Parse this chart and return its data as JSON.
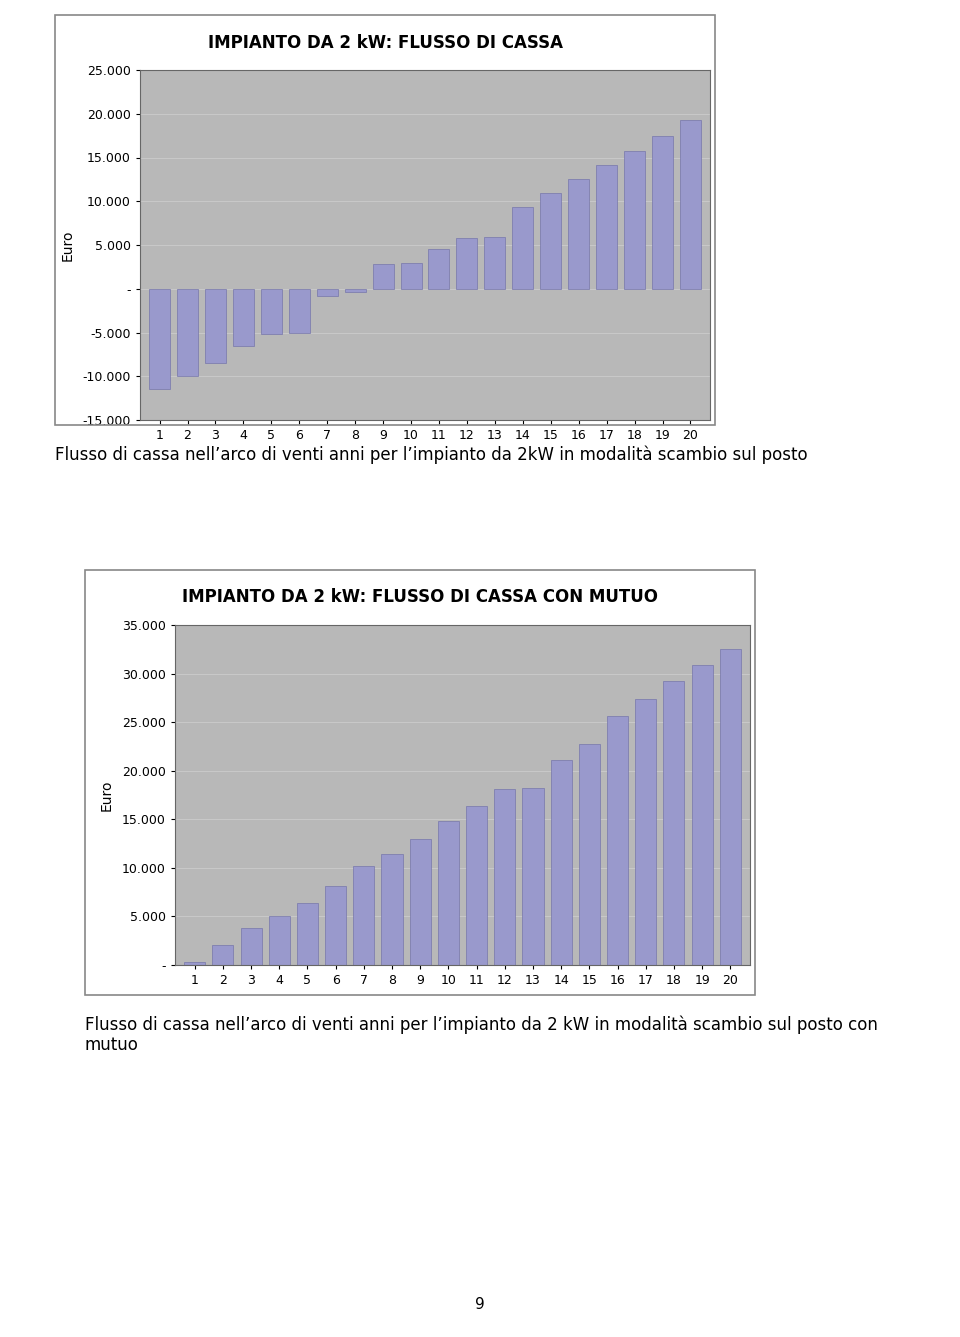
{
  "chart1": {
    "title": "IMPIANTO DA 2 kW: FLUSSO DI CASSA",
    "ylabel": "Euro",
    "values": [
      -11500,
      -10000,
      -8500,
      -6500,
      -5200,
      -5000,
      -850,
      -350,
      2800,
      3000,
      4500,
      5800,
      5900,
      9400,
      10900,
      12500,
      14200,
      15700,
      17500,
      19300
    ],
    "ylim": [
      -15000,
      25000
    ],
    "yticks": [
      -15000,
      -10000,
      -5000,
      0,
      5000,
      10000,
      15000,
      20000,
      25000
    ],
    "ytick_labels": [
      "-15.000",
      "-10.000",
      "-5.000",
      "-",
      "5.000",
      "10.000",
      "15.000",
      "20.000",
      "25.000"
    ]
  },
  "chart2": {
    "title": "IMPIANTO DA 2 kW: FLUSSO DI CASSA CON MUTUO",
    "ylabel": "Euro",
    "values": [
      300,
      2100,
      3800,
      5000,
      6400,
      8100,
      10200,
      11400,
      13000,
      14800,
      16400,
      18100,
      18200,
      21100,
      22700,
      25600,
      27400,
      29200,
      30900,
      32500
    ],
    "ylim": [
      0,
      35000
    ],
    "yticks": [
      0,
      5000,
      10000,
      15000,
      20000,
      25000,
      30000,
      35000
    ],
    "ytick_labels": [
      "-",
      "5.000",
      "10.000",
      "15.000",
      "20.000",
      "25.000",
      "30.000",
      "35.000"
    ]
  },
  "caption1": "Flusso di cassa nell’arco di venti anni per l’impianto da 2kW in modalità scambio sul posto",
  "caption2": "Flusso di cassa nell’arco di venti anni per l’impianto da 2 kW in modalità scambio sul posto con\nmutuo",
  "page_number": "9",
  "bar_color": "#9999cc",
  "bar_edgecolor": "#7777aa",
  "plot_bg_color": "#b8b8b8",
  "frame_bg_color": "#ffffff",
  "outer_bg": "#ffffff",
  "grid_color": "#c8c8c8",
  "categories": [
    1,
    2,
    3,
    4,
    5,
    6,
    7,
    8,
    9,
    10,
    11,
    12,
    13,
    14,
    15,
    16,
    17,
    18,
    19,
    20
  ],
  "title_fontsize": 12,
  "axis_label_fontsize": 10,
  "tick_fontsize": 9,
  "caption_fontsize": 12
}
